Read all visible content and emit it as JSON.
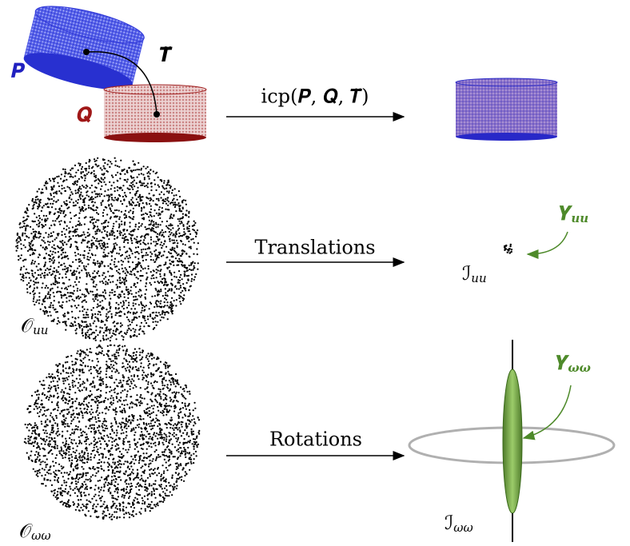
{
  "top_row": {
    "source_label": "𝑷",
    "target_label": "𝑸",
    "transform_label": "𝑻̌",
    "arrow_label": "icp(𝑷, 𝑸, 𝑻̌)"
  },
  "middle_row": {
    "cloud_label": {
      "symbol": "𝒪",
      "subscript": "uu"
    },
    "arrow_label": "Translations",
    "result_label": {
      "symbol": "ℐ",
      "subscript": "uu"
    },
    "ellipsoid_label": {
      "symbol": "𝒀",
      "subscript": "uu"
    }
  },
  "bottom_row": {
    "cloud_label": {
      "symbol": "𝒪",
      "subscript": "ωω"
    },
    "arrow_label": "Rotations",
    "result_label": {
      "symbol": "ℐ",
      "subscript": "ωω"
    },
    "ellipsoid_label": {
      "symbol": "𝒀",
      "subscript": "ωω"
    }
  }
}
